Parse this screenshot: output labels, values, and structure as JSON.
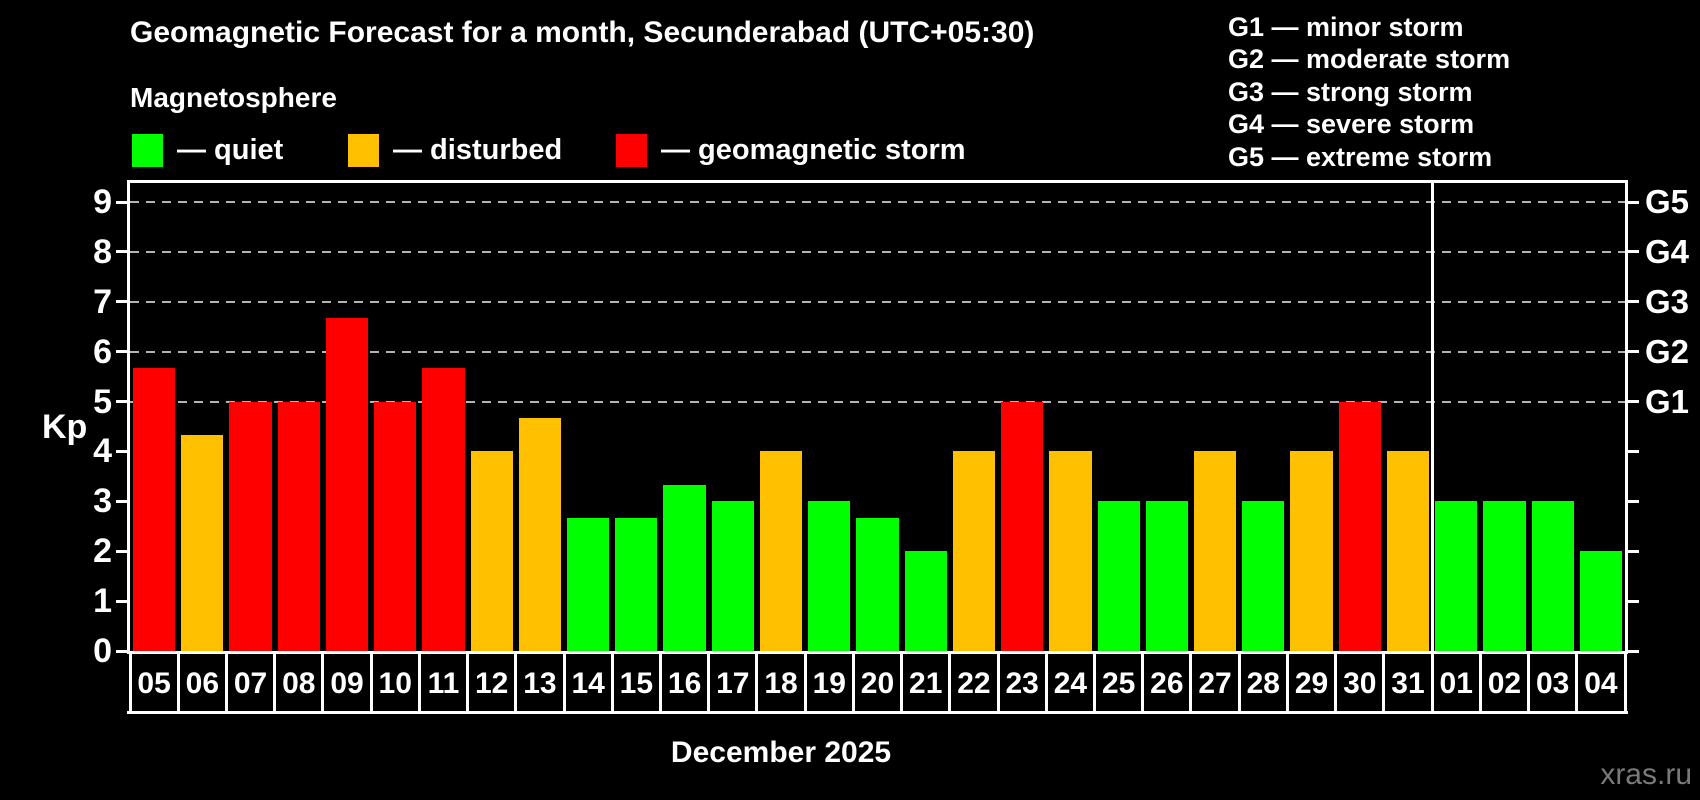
{
  "title": "Geomagnetic Forecast for a month, Secunderabad (UTC+05:30)",
  "subtitle": "Magnetosphere",
  "status_legend": [
    {
      "key": "quiet",
      "label": "— quiet",
      "color": "#00ff00"
    },
    {
      "key": "disturbed",
      "label": "— disturbed",
      "color": "#ffc000"
    },
    {
      "key": "storm",
      "label": "— geomagnetic storm",
      "color": "#ff0000"
    }
  ],
  "storm_scale_legend": [
    "G1 — minor storm",
    "G2 — moderate storm",
    "G3 — strong storm",
    "G4 — severe storm",
    "G5 — extreme storm"
  ],
  "watermark": "xras.ru",
  "chart_data": {
    "type": "bar",
    "title": "Geomagnetic Forecast for a month, Secunderabad (UTC+05:30)",
    "ylabel": "Kp",
    "xlabel": "December 2025",
    "ylim": [
      0,
      9.4
    ],
    "yticks": [
      0,
      1,
      2,
      3,
      4,
      5,
      6,
      7,
      8,
      9
    ],
    "gridlines_at_kp": [
      5,
      6,
      7,
      8,
      9
    ],
    "grid": "dashed horizontal lines at storm levels G1–G5 only",
    "right_axis": [
      {
        "label": "G1",
        "kp": 5
      },
      {
        "label": "G2",
        "kp": 6
      },
      {
        "label": "G3",
        "kp": 7
      },
      {
        "label": "G4",
        "kp": 8
      },
      {
        "label": "G5",
        "kp": 9
      }
    ],
    "legend_position": "top-left",
    "month_separator_after_index": 26,
    "categories": [
      "05",
      "06",
      "07",
      "08",
      "09",
      "10",
      "11",
      "12",
      "13",
      "14",
      "15",
      "16",
      "17",
      "18",
      "19",
      "20",
      "21",
      "22",
      "23",
      "24",
      "25",
      "26",
      "27",
      "28",
      "29",
      "30",
      "31",
      "01",
      "02",
      "03",
      "04"
    ],
    "values": [
      5.67,
      4.33,
      5,
      5,
      6.67,
      5,
      5.67,
      4,
      4.67,
      2.67,
      2.67,
      3.33,
      3,
      4,
      3,
      2.67,
      2,
      4,
      5,
      4,
      3,
      3,
      4,
      3,
      4,
      5,
      4,
      3,
      3,
      3,
      2
    ],
    "statuses": [
      "storm",
      "disturbed",
      "storm",
      "storm",
      "storm",
      "storm",
      "storm",
      "disturbed",
      "disturbed",
      "quiet",
      "quiet",
      "quiet",
      "quiet",
      "disturbed",
      "quiet",
      "quiet",
      "quiet",
      "disturbed",
      "storm",
      "disturbed",
      "quiet",
      "quiet",
      "disturbed",
      "quiet",
      "disturbed",
      "storm",
      "disturbed",
      "quiet",
      "quiet",
      "quiet",
      "quiet"
    ],
    "colors": {
      "quiet": "#00ff00",
      "disturbed": "#ffc000",
      "storm": "#ff0000"
    }
  }
}
